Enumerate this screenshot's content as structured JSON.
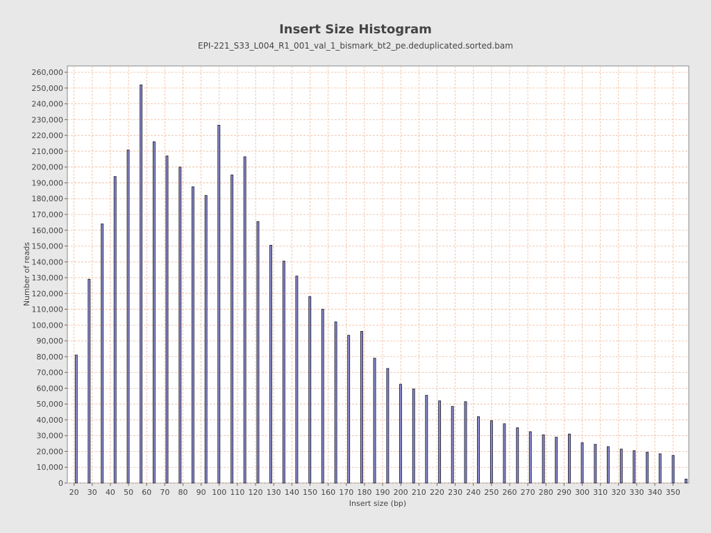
{
  "chart_data": {
    "type": "bar",
    "title": "Insert Size Histogram",
    "subtitle": "EPI-221_S33_L004_R1_001_val_1_bismark_bt2_pe.deduplicated.sorted.bam",
    "xlabel": "Insert size (bp)",
    "ylabel": "Number of reads",
    "xlim": [
      16.3,
      358.7
    ],
    "ylim": [
      0,
      264000
    ],
    "grid": true,
    "x_ticks": [
      20,
      30,
      40,
      50,
      60,
      70,
      80,
      90,
      100,
      110,
      120,
      130,
      140,
      150,
      160,
      170,
      180,
      190,
      200,
      210,
      220,
      230,
      240,
      250,
      260,
      270,
      280,
      290,
      300,
      310,
      320,
      330,
      340,
      350
    ],
    "y_ticks": [
      0,
      10000,
      20000,
      30000,
      40000,
      50000,
      60000,
      70000,
      80000,
      90000,
      100000,
      110000,
      120000,
      130000,
      140000,
      150000,
      160000,
      170000,
      180000,
      190000,
      200000,
      210000,
      220000,
      230000,
      240000,
      250000,
      260000
    ],
    "y_tick_labels": [
      "0",
      "10,000",
      "20,000",
      "30,000",
      "40,000",
      "50,000",
      "60,000",
      "70,000",
      "80,000",
      "90,000",
      "100,000",
      "110,000",
      "120,000",
      "130,000",
      "140,000",
      "150,000",
      "160,000",
      "170,000",
      "180,000",
      "190,000",
      "200,000",
      "210,000",
      "220,000",
      "230,000",
      "240,000",
      "250,000",
      "260,000"
    ],
    "x": [
      21.2,
      28.3,
      35.5,
      42.6,
      49.8,
      56.9,
      64.1,
      71.2,
      78.4,
      85.5,
      92.7,
      99.8,
      107.0,
      114.1,
      121.3,
      128.4,
      135.6,
      142.7,
      149.9,
      157.0,
      164.2,
      171.3,
      178.5,
      185.6,
      192.8,
      199.9,
      207.1,
      214.2,
      221.4,
      228.5,
      235.7,
      242.8,
      250.0,
      257.1,
      264.3,
      271.4,
      278.6,
      285.7,
      292.9,
      300.0,
      307.2,
      314.3,
      321.5,
      328.6,
      335.8,
      342.9,
      350.1,
      357.2
    ],
    "values": [
      81000,
      129000,
      164000,
      194000,
      210800,
      252000,
      216000,
      207000,
      200000,
      187500,
      182000,
      226500,
      195000,
      206500,
      165500,
      150500,
      140500,
      131000,
      118000,
      110000,
      102000,
      93500,
      96000,
      79000,
      72500,
      62500,
      59500,
      55500,
      52000,
      48500,
      51500,
      42000,
      39500,
      37500,
      35000,
      32500,
      30500,
      29000,
      31000,
      25500,
      24500,
      23000,
      21500,
      20500,
      19500,
      18500,
      17500,
      2500
    ],
    "colors": {
      "bar_fill": "#8b8bd0",
      "bar_stroke": "#222233",
      "grid": "#f0b896",
      "plot_bg": "#ffffff",
      "page_bg": "#e8e8e8"
    }
  }
}
